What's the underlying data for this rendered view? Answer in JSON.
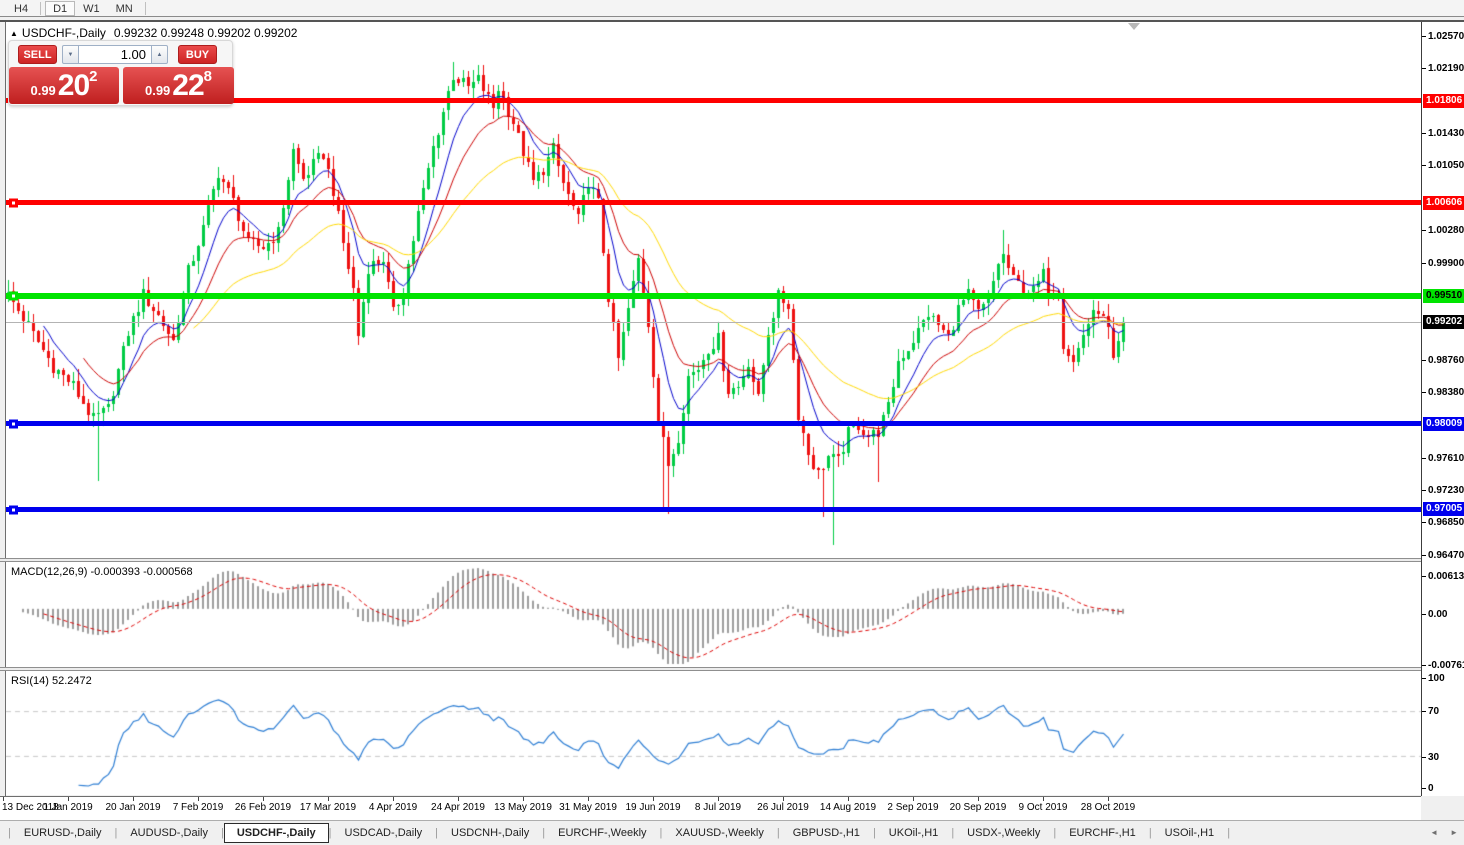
{
  "toolbar": {
    "periods": [
      {
        "label": "H4",
        "active": false
      },
      {
        "label": "D1",
        "active": true
      },
      {
        "label": "W1",
        "active": false
      },
      {
        "label": "MN",
        "active": false
      }
    ]
  },
  "chart": {
    "symbol_header": "USDCHF-,Daily",
    "ohlc_header": "0.99232 0.99248 0.99202 0.99202",
    "collapse_icon": "▲"
  },
  "trade": {
    "sell_label": "SELL",
    "buy_label": "BUY",
    "volume": "1.00",
    "spin_down_icon": "▼",
    "spin_up_icon": "▲",
    "sell_price_small": "0.99",
    "sell_price_big": "20",
    "sell_price_sup": "2",
    "buy_price_small": "0.99",
    "buy_price_big": "22",
    "buy_price_sup": "8"
  },
  "price_axis_ticks": [
    "1.02570",
    "1.02190",
    "1.01430",
    "1.01050",
    "1.00280",
    "0.99900",
    "0.98760",
    "0.98380",
    "0.97610",
    "0.97230",
    "0.96850",
    "0.96470"
  ],
  "indicators": {
    "macd_label": "MACD(12,26,9) -0.000393 -0.000568",
    "macd_axis_ticks": [
      "0.00613",
      "0.00",
      "-0.007612"
    ],
    "rsi_label": "RSI(14) 52.2472",
    "rsi_axis_ticks": [
      "100",
      "70",
      "30",
      "0"
    ]
  },
  "time_axis_labels": [
    "13 Dec 2018",
    "1 Jan 2019",
    "20 Jan 2019",
    "7 Feb 2019",
    "26 Feb 2019",
    "17 Mar 2019",
    "4 Apr 2019",
    "24 Apr 2019",
    "13 May 2019",
    "31 May 2019",
    "19 Jun 2019",
    "8 Jul 2019",
    "26 Jul 2019",
    "14 Aug 2019",
    "2 Sep 2019",
    "20 Sep 2019",
    "9 Oct 2019",
    "28 Oct 2019"
  ],
  "tabs": {
    "items": [
      {
        "label": "EURUSD-,Daily",
        "active": false
      },
      {
        "label": "AUDUSD-,Daily",
        "active": false
      },
      {
        "label": "USDCHF-,Daily",
        "active": true
      },
      {
        "label": "USDCAD-,Daily",
        "active": false
      },
      {
        "label": "USDCNH-,Daily",
        "active": false
      },
      {
        "label": "EURCHF-,Weekly",
        "active": false
      },
      {
        "label": "XAUUSD-,Weekly",
        "active": false
      },
      {
        "label": "GBPUSD-,H1",
        "active": false
      },
      {
        "label": "UKOil-,H1",
        "active": false
      },
      {
        "label": "USDX-,Weekly",
        "active": false
      },
      {
        "label": "EURCHF-,H1",
        "active": false
      },
      {
        "label": "USOil-,H1",
        "active": false
      }
    ],
    "nav_left_icon": "◄",
    "nav_right_icon": "►"
  },
  "chart_data": {
    "type": "candlestick",
    "symbol": "USDCHF-",
    "timeframe": "Daily",
    "ohlc_current": {
      "open": 0.99232,
      "high": 0.99248,
      "low": 0.99202,
      "close": 0.99202
    },
    "ylim": [
      0.9647,
      1.0257
    ],
    "price_grid_step": 0.0038,
    "num_candles": 225,
    "candles_per_x_label": 13,
    "x_labels": [
      "13 Dec 2018",
      "1 Jan 2019",
      "20 Jan 2019",
      "7 Feb 2019",
      "26 Feb 2019",
      "17 Mar 2019",
      "4 Apr 2019",
      "24 Apr 2019",
      "13 May 2019",
      "31 May 2019",
      "19 Jun 2019",
      "8 Jul 2019",
      "26 Jul 2019",
      "14 Aug 2019",
      "2 Sep 2019",
      "20 Sep 2019",
      "9 Oct 2019",
      "28 Oct 2019"
    ],
    "bull_color": "#00cc44",
    "bear_color": "#ee1111",
    "close_anchors": [
      [
        0,
        0.996
      ],
      [
        1,
        0.9952
      ],
      [
        5,
        0.9916
      ],
      [
        10,
        0.9868
      ],
      [
        14,
        0.9845
      ],
      [
        18,
        0.9806
      ],
      [
        21,
        0.9818
      ],
      [
        25,
        0.9908
      ],
      [
        28,
        0.9953
      ],
      [
        31,
        0.9928
      ],
      [
        34,
        0.9898
      ],
      [
        37,
        0.998
      ],
      [
        40,
        1.003
      ],
      [
        43,
        1.0096
      ],
      [
        46,
        1.0062
      ],
      [
        49,
        1.0012
      ],
      [
        52,
        1.0008
      ],
      [
        55,
        1.0026
      ],
      [
        58,
        1.0122
      ],
      [
        60,
        1.0088
      ],
      [
        62,
        1.0105
      ],
      [
        64,
        1.0118
      ],
      [
        66,
        1.0075
      ],
      [
        68,
        1.0012
      ],
      [
        70,
        0.9958
      ],
      [
        71,
        0.9905
      ],
      [
        73,
        0.9985
      ],
      [
        76,
        0.9995
      ],
      [
        78,
        0.993
      ],
      [
        80,
        0.9958
      ],
      [
        83,
        1.0048
      ],
      [
        86,
        1.0125
      ],
      [
        89,
        1.019
      ],
      [
        90,
        1.021
      ],
      [
        93,
        1.0195
      ],
      [
        95,
        1.0205
      ],
      [
        98,
        1.0172
      ],
      [
        99,
        1.0196
      ],
      [
        102,
        1.0155
      ],
      [
        104,
        1.012
      ],
      [
        106,
        1.0085
      ],
      [
        108,
        1.01
      ],
      [
        110,
        1.0124
      ],
      [
        112,
        1.0083
      ],
      [
        115,
        1.004
      ],
      [
        117,
        1.0085
      ],
      [
        119,
        1.006
      ],
      [
        121,
        0.995
      ],
      [
        123,
        0.9876
      ],
      [
        125,
        0.9935
      ],
      [
        127,
        0.9994
      ],
      [
        129,
        0.992
      ],
      [
        131,
        0.9806
      ],
      [
        133,
        0.9752
      ],
      [
        135,
        0.9786
      ],
      [
        137,
        0.9856
      ],
      [
        139,
        0.9866
      ],
      [
        141,
        0.989
      ],
      [
        143,
        0.99
      ],
      [
        145,
        0.984
      ],
      [
        147,
        0.9844
      ],
      [
        149,
        0.9874
      ],
      [
        151,
        0.983
      ],
      [
        153,
        0.991
      ],
      [
        155,
        0.995
      ],
      [
        157,
        0.994
      ],
      [
        159,
        0.9812
      ],
      [
        161,
        0.9766
      ],
      [
        163,
        0.9742
      ],
      [
        165,
        0.9762
      ],
      [
        167,
        0.9756
      ],
      [
        169,
        0.979
      ],
      [
        171,
        0.98
      ],
      [
        173,
        0.9786
      ],
      [
        175,
        0.9792
      ],
      [
        177,
        0.982
      ],
      [
        179,
        0.9875
      ],
      [
        181,
        0.989
      ],
      [
        183,
        0.991
      ],
      [
        185,
        0.993
      ],
      [
        187,
        0.9916
      ],
      [
        189,
        0.9902
      ],
      [
        191,
        0.9936
      ],
      [
        193,
        0.9952
      ],
      [
        195,
        0.993
      ],
      [
        197,
        0.9946
      ],
      [
        199,
        0.999
      ],
      [
        200,
        0.9998
      ],
      [
        202,
        0.997
      ],
      [
        204,
        0.996
      ],
      [
        206,
        0.9956
      ],
      [
        208,
        0.9976
      ],
      [
        209,
        0.996
      ],
      [
        211,
        0.9956
      ],
      [
        212,
        0.9896
      ],
      [
        214,
        0.9872
      ],
      [
        216,
        0.9906
      ],
      [
        217,
        0.992
      ],
      [
        219,
        0.9936
      ],
      [
        221,
        0.991
      ],
      [
        222,
        0.9878
      ],
      [
        223,
        0.9898
      ],
      [
        224,
        0.99202
      ]
    ],
    "wick_overrides": [
      {
        "i": 19,
        "low": 0.9733
      },
      {
        "i": 90,
        "high": 1.0226
      },
      {
        "i": 95,
        "high": 1.0222
      },
      {
        "i": 132,
        "low": 0.97
      },
      {
        "i": 133,
        "low": 0.9695
      },
      {
        "i": 164,
        "low": 0.9692
      },
      {
        "i": 166,
        "low": 0.9659
      },
      {
        "i": 175,
        "low": 0.9732
      },
      {
        "i": 200,
        "high": 1.0028
      }
    ],
    "moving_averages": [
      {
        "name": "ma-fast",
        "period": 8,
        "color": "#0000cc"
      },
      {
        "name": "ma-mid",
        "period": 16,
        "color": "#cc0000"
      },
      {
        "name": "ma-slow",
        "period": 38,
        "color": "#ffd800"
      }
    ],
    "hlines": [
      {
        "price": 1.01806,
        "label": "1.01806",
        "color": "#ff0000",
        "thickness": 5,
        "handle": false,
        "label_bg": "#ff0000",
        "label_fg": "#ffffff"
      },
      {
        "price": 1.00606,
        "label": "1.00606",
        "color": "#ff0000",
        "thickness": 5,
        "handle": true,
        "label_bg": "#ff0000",
        "label_fg": "#ffffff"
      },
      {
        "price": 0.9951,
        "label": "0.99510",
        "color": "#00e400",
        "thickness": 6,
        "handle": true,
        "label_bg": "#00e400",
        "label_fg": "#000000"
      },
      {
        "price": 0.98009,
        "label": "0.98009",
        "color": "#0000ee",
        "thickness": 5,
        "handle": true,
        "label_bg": "#0000ee",
        "label_fg": "#ffffff"
      },
      {
        "price": 0.97005,
        "label": "0.97005",
        "color": "#0000ee",
        "thickness": 5,
        "handle": true,
        "label_bg": "#0000ee",
        "label_fg": "#ffffff"
      }
    ],
    "current_price": {
      "value": 0.99202,
      "label": "0.99202",
      "label_bg": "#000000",
      "label_fg": "#ffffff"
    },
    "macd": {
      "fast": 12,
      "slow": 26,
      "signal": 9,
      "ymax": 0.00613,
      "ymin": -0.007612,
      "hist_color": "#9e9e9e",
      "signal_color": "#dd0000",
      "current_main": -0.000393,
      "current_signal": -0.000568
    },
    "rsi": {
      "period": 14,
      "current": 52.2472,
      "color": "#2f7fd4",
      "levels": [
        70,
        30
      ],
      "level_color": "#c8c8c8",
      "ymax": 100,
      "ymin": 0
    }
  }
}
